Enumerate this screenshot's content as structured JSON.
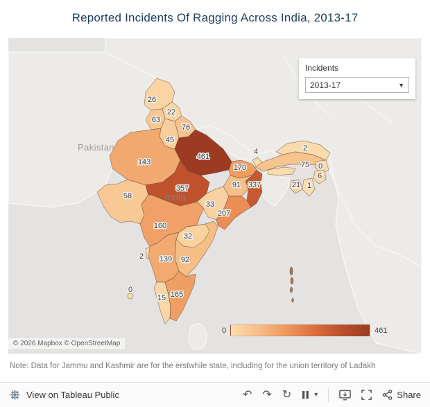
{
  "title": "Reported Incidents Of Ragging Across India, 2013-17",
  "filter": {
    "label": "Incidents",
    "selected": "2013-17"
  },
  "map": {
    "pakistan_label": "Pakistan",
    "india_label": "India",
    "attribution": "© 2026 Mapbox © OpenStreetMap"
  },
  "note": "Note: Data for Jammu and Kashmir are for the erstwhile state, including for the union territory of Ladakh",
  "toolbar": {
    "view_label": "View on Tableau Public",
    "share_label": "Share"
  },
  "icons": {
    "undo": "↶",
    "redo": "↷",
    "reset": "↻",
    "caret_down": "▾",
    "dropdown_caret": "▼"
  },
  "chart_data": {
    "type": "choropleth",
    "title": "Reported Incidents Of Ragging Across India, 2013-17",
    "region": "India",
    "period": "2013-17",
    "legend": {
      "min": 0,
      "max": 461,
      "colors": [
        "#fbdcae",
        "#f6be87",
        "#ef975b",
        "#dd6f3e",
        "#bb4e2b",
        "#9c3b21"
      ]
    },
    "states": [
      {
        "id": "jk",
        "name": "Jammu and Kashmir",
        "value": 26
      },
      {
        "id": "hp",
        "name": "Himachal Pradesh",
        "value": 22
      },
      {
        "id": "pb",
        "name": "Punjab",
        "value": 63
      },
      {
        "id": "uk",
        "name": "Uttarakhand",
        "value": 76
      },
      {
        "id": "hr",
        "name": "Haryana",
        "value": 45
      },
      {
        "id": "up",
        "name": "Uttar Pradesh",
        "value": 461
      },
      {
        "id": "rj",
        "name": "Rajasthan",
        "value": 143
      },
      {
        "id": "br",
        "name": "Bihar",
        "value": 170
      },
      {
        "id": "sk",
        "name": "Sikkim",
        "value": 4
      },
      {
        "id": "wb",
        "name": "West Bengal",
        "value": 337
      },
      {
        "id": "jh",
        "name": "Jharkhand",
        "value": 91
      },
      {
        "id": "mp",
        "name": "Madhya Pradesh",
        "value": 357
      },
      {
        "id": "gj",
        "name": "Gujarat",
        "value": 58
      },
      {
        "id": "ct",
        "name": "Chhattisgarh",
        "value": 33
      },
      {
        "id": "od",
        "name": "Odisha",
        "value": 207
      },
      {
        "id": "mh",
        "name": "Maharashtra",
        "value": 160
      },
      {
        "id": "tg",
        "name": "Telangana",
        "value": 32
      },
      {
        "id": "ga",
        "name": "Goa",
        "value": 2
      },
      {
        "id": "ka",
        "name": "Karnataka",
        "value": 139
      },
      {
        "id": "ap",
        "name": "Andhra Pradesh",
        "value": 92
      },
      {
        "id": "ld",
        "name": "Lakshadweep",
        "value": 0
      },
      {
        "id": "kl",
        "name": "Kerala",
        "value": 15
      },
      {
        "id": "tn",
        "name": "Tamil Nadu",
        "value": 165
      },
      {
        "id": "ar",
        "name": "Arunachal Pradesh",
        "value": 2
      },
      {
        "id": "as",
        "name": "Assam",
        "value": 75
      },
      {
        "id": "nl",
        "name": "Nagaland",
        "value": 0
      },
      {
        "id": "mn",
        "name": "Manipur",
        "value": 6
      },
      {
        "id": "tr",
        "name": "Tripura",
        "value": 21
      },
      {
        "id": "mz",
        "name": "Mizoram",
        "value": 1
      }
    ]
  }
}
